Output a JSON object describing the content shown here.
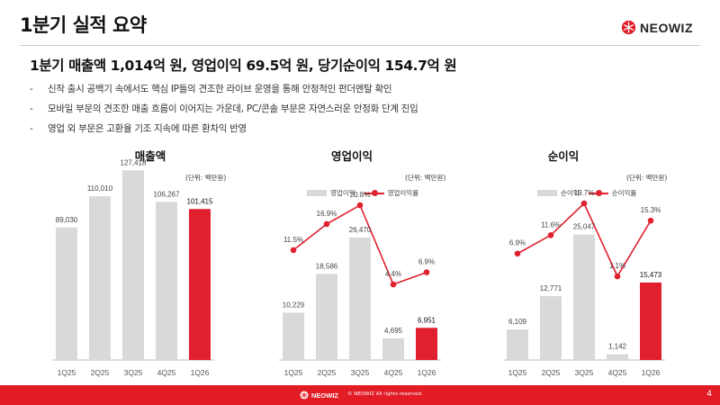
{
  "page": {
    "title": "1분기 실적 요약",
    "headline": "1분기 매출액 1,014억 원, 영업이익 69.5억 원, 당기순이익 154.7억 원",
    "bullets": [
      "신작 출시 공백기 속에서도 핵심 IP들의 견조한 라이브 운영을 통해 안정적인 펀더멘탈 확인",
      "모바일 부문의 견조한 매출 흐름이 이어지는 가운데, PC/콘솔 부문은 자연스러운 안정화 단계 진입",
      "영업 외 부문은 고환율 기조 지속에 따른 환차익 반영"
    ],
    "bullet_dash": "-"
  },
  "brand": {
    "name": "NEOWIZ",
    "logo_icon": "neowiz-snowflake-icon"
  },
  "footer": {
    "brand": "NEOWIZ",
    "copyright": "© NEOWIZ All rights reserved.",
    "page_number": "4"
  },
  "colors": {
    "accent": "#e21b25",
    "bar_gray": "#d9d9d9",
    "bar_highlight": "#e0202e",
    "line": "#e0202e"
  },
  "chart_data": [
    {
      "type": "bar",
      "title": "매출액",
      "unit": "(단위: 백만원)",
      "categories": [
        "1Q25",
        "2Q25",
        "3Q25",
        "4Q25",
        "1Q26"
      ],
      "values": [
        89030,
        110010,
        127418,
        106267,
        101415
      ],
      "labels": [
        "89,030",
        "110,010",
        "127,418",
        "106,267",
        "101,415"
      ],
      "highlight_index": 4,
      "ylim": [
        0,
        130000
      ]
    },
    {
      "type": "bar+line",
      "title": "영업이익",
      "unit": "(단위: 백만원)",
      "legend": [
        "영업이익",
        "영업이익률"
      ],
      "legend_position": "top-left",
      "categories": [
        "1Q25",
        "2Q25",
        "3Q25",
        "4Q25",
        "1Q26"
      ],
      "values": [
        10229,
        18586,
        26470,
        4695,
        6951
      ],
      "labels": [
        "10,229",
        "18,586",
        "26,470",
        "4,695",
        "6,951"
      ],
      "rate": [
        11.5,
        16.9,
        20.8,
        4.4,
        6.9
      ],
      "rate_labels": [
        "11.5%",
        "16.9%",
        "20.8%",
        "4.4%",
        "6.9%"
      ],
      "highlight_index": 4,
      "ylim": [
        0,
        35000
      ]
    },
    {
      "type": "bar+line",
      "title": "순이익",
      "unit": "(단위: 백만원)",
      "legend": [
        "순이익",
        "순이익률"
      ],
      "legend_position": "top-left",
      "categories": [
        "1Q25",
        "2Q25",
        "3Q25",
        "4Q25",
        "1Q26"
      ],
      "values": [
        6109,
        12771,
        25047,
        1142,
        15473
      ],
      "labels": [
        "6,109",
        "12,771",
        "25,047",
        "1,142",
        "15,473"
      ],
      "rate": [
        6.9,
        11.6,
        19.7,
        1.1,
        15.3
      ],
      "rate_labels": [
        "6.9%",
        "11.6%",
        "19.7%",
        "1.1%",
        "15.3%"
      ],
      "highlight_index": 4,
      "ylim": [
        0,
        32000
      ]
    }
  ]
}
